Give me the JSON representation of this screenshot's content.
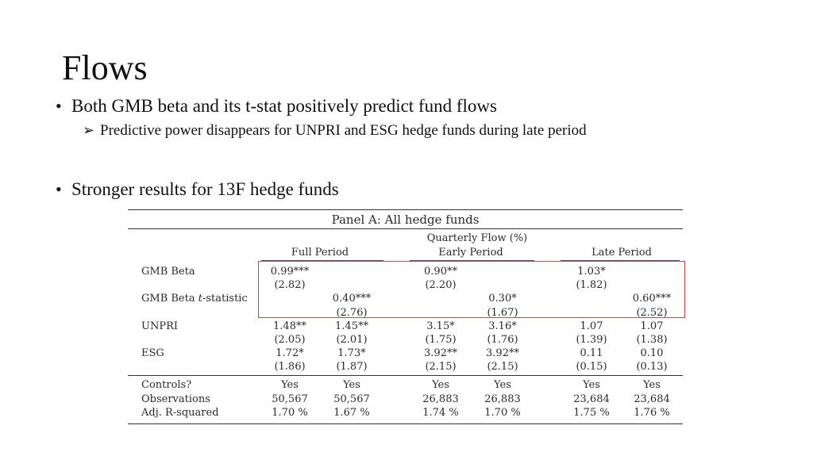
{
  "slide": {
    "title": "Flows",
    "bullets": [
      "Both GMB beta and its t-stat positively predict fund flows",
      "Stronger results for 13F hedge funds"
    ],
    "sub_bullet": "Predictive power disappears for UNPRI and ESG hedge funds during late period",
    "bullet_glyph": "•",
    "sub_glyph": "➢"
  },
  "table": {
    "panel_title": "Panel A: All hedge funds",
    "flow_header": "Quarterly Flow (%)",
    "periods": [
      "Full Period",
      "Early Period",
      "Late Period"
    ],
    "rows": [
      {
        "label": "GMB Beta",
        "label_italic_part": "",
        "values": [
          "0.99***",
          "",
          "0.90**",
          "",
          "1.03*",
          ""
        ]
      },
      {
        "label": "",
        "values": [
          "(2.82)",
          "",
          "(2.20)",
          "",
          "(1.82)",
          ""
        ]
      },
      {
        "label": "GMB Beta ",
        "label_italic_part": "t",
        "label_suffix": "-statistic",
        "values": [
          "",
          "0.40***",
          "",
          "0.30*",
          "",
          "0.60***"
        ]
      },
      {
        "label": "",
        "values": [
          "",
          "(2.76)",
          "",
          "(1.67)",
          "",
          "(2.52)"
        ]
      },
      {
        "label": "UNPRI",
        "values": [
          "1.48**",
          "1.45**",
          "3.15*",
          "3.16*",
          "1.07",
          "1.07"
        ]
      },
      {
        "label": "",
        "values": [
          "(2.05)",
          "(2.01)",
          "(1.75)",
          "(1.76)",
          "(1.39)",
          "(1.38)"
        ]
      },
      {
        "label": "ESG",
        "values": [
          "1.72*",
          "1.73*",
          "3.92**",
          "3.92**",
          "0.11",
          "0.10"
        ]
      },
      {
        "label": "",
        "values": [
          "(1.86)",
          "(1.87)",
          "(2.15)",
          "(2.15)",
          "(0.15)",
          "(0.13)"
        ]
      }
    ],
    "footer_rows": [
      {
        "label": "Controls?",
        "values": [
          "Yes",
          "Yes",
          "Yes",
          "Yes",
          "Yes",
          "Yes"
        ]
      },
      {
        "label": "Observations",
        "values": [
          "50,567",
          "50,567",
          "26,883",
          "26,883",
          "23,684",
          "23,684"
        ]
      },
      {
        "label": "Adj. R-squared",
        "values": [
          "1.70 %",
          "1.67 %",
          "1.74 %",
          "1.70 %",
          "1.75 %",
          "1.76 %"
        ]
      }
    ],
    "highlight_color": "#e03a3a"
  }
}
